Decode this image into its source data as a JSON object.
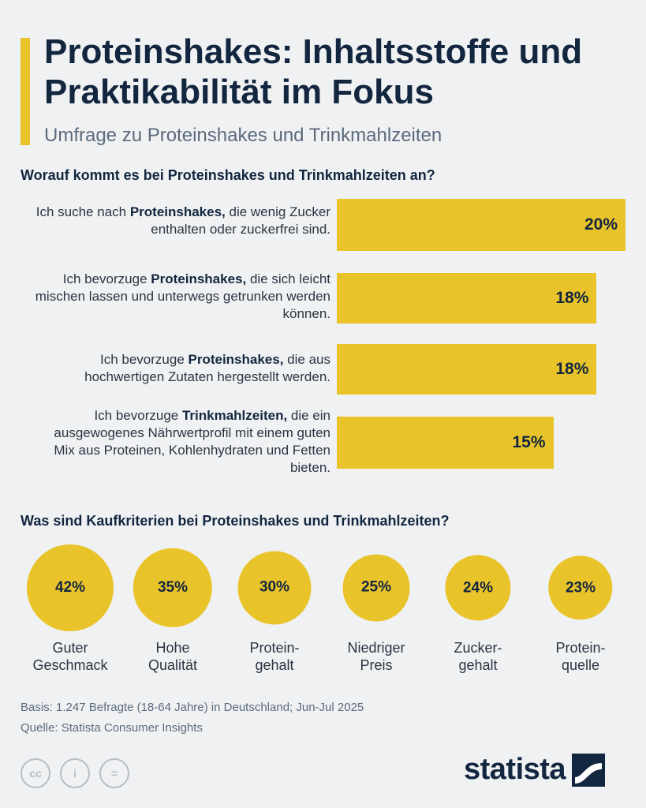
{
  "header": {
    "title": "Proteinshakes: Inhaltsstoffe und Praktikabilität im Fokus",
    "subtitle": "Umfrage zu Proteinshakes und Trinkmahlzeiten"
  },
  "chart_data": [
    {
      "type": "bar",
      "orientation": "horizontal",
      "title": "Worauf kommt es bei Proteinshakes und Trinkmahlzeiten an?",
      "unit": "%",
      "xlim": [
        0,
        20
      ],
      "categories": [
        {
          "pre": "Ich suche nach ",
          "bold": "Proteinshakes,",
          "post": " die wenig Zucker enthalten oder zuckerfrei sind."
        },
        {
          "pre": "Ich bevorzuge ",
          "bold": "Proteinshakes,",
          "post": " die sich leicht mischen lassen und unterwegs getrunken werden können."
        },
        {
          "pre": "Ich bevorzuge ",
          "bold": "Proteinshakes,",
          "post": " die aus hochwertigen Zutaten hergestellt werden."
        },
        {
          "pre": "Ich bevorzuge ",
          "bold": "Trinkmahlzeiten,",
          "post": " die ein ausgewogenes Nährwertprofil mit einem guten Mix aus Proteinen, Kohlenhydraten und Fetten bieten."
        }
      ],
      "values": [
        20,
        18,
        18,
        15
      ],
      "value_labels": [
        "20%",
        "18%",
        "18%",
        "15%"
      ]
    },
    {
      "type": "bubble",
      "title": "Was sind Kaufkriterien bei Proteinshakes und Trinkmahlzeiten?",
      "unit": "%",
      "categories": [
        "Guter Geschmack",
        "Hohe Qualität",
        "Protein-gehalt",
        "Niedriger Preis",
        "Zucker-gehalt",
        "Protein-quelle"
      ],
      "category_lines": [
        "Guter\nGeschmack",
        "Hohe\nQualität",
        "Protein-\ngehalt",
        "Niedriger\nPreis",
        "Zucker-\ngehalt",
        "Protein-\nquelle"
      ],
      "values": [
        42,
        35,
        30,
        25,
        24,
        23
      ],
      "value_labels": [
        "42%",
        "35%",
        "30%",
        "25%",
        "24%",
        "23%"
      ]
    }
  ],
  "footer": {
    "basis": "Basis: 1.247 Befragte (18-64 Jahre) in Deutschland; Jun-Jul 2025",
    "source": "Quelle: Statista Consumer Insights",
    "license_icons": [
      "cc-icon",
      "person-icon",
      "equals-icon"
    ],
    "license_glyphs": [
      "cc",
      "i",
      "="
    ],
    "brand": "statista"
  },
  "colors": {
    "accent": "#e9c32a",
    "title": "#12263f",
    "background": "#f0f1f3"
  }
}
